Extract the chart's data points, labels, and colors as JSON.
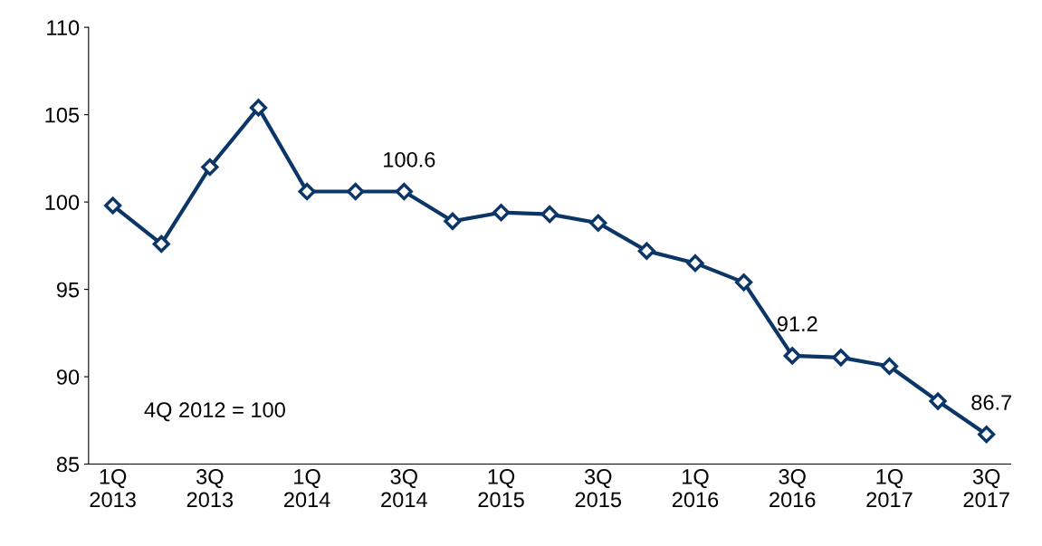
{
  "chart_data": {
    "type": "line",
    "categories": [
      "1Q\n2013",
      null,
      "3Q\n2013",
      null,
      "1Q\n2014",
      null,
      "3Q\n2014",
      null,
      "1Q\n2015",
      null,
      "3Q\n2015",
      null,
      "1Q\n2016",
      null,
      "3Q\n2016",
      null,
      "1Q\n2017",
      null,
      "3Q\n2017"
    ],
    "series": [
      {
        "color": "#0b3667",
        "values": [
          99.8,
          97.6,
          102.0,
          105.4,
          100.6,
          100.6,
          100.6,
          98.9,
          99.4,
          99.3,
          98.8,
          97.2,
          96.5,
          95.4,
          91.2,
          91.1,
          90.6,
          88.6,
          86.7
        ],
        "value_labels": [
          null,
          null,
          null,
          null,
          null,
          null,
          "100.6",
          null,
          null,
          null,
          null,
          null,
          null,
          null,
          "91.2",
          null,
          null,
          null,
          "86.7"
        ]
      }
    ],
    "ylim": [
      85,
      110
    ],
    "yticks": [
      85,
      90,
      95,
      100,
      105,
      110
    ],
    "marker": "diamond",
    "line_style": "solid",
    "grid": false,
    "legend": false,
    "annotations": [
      "4Q 2012 = 100"
    ]
  }
}
